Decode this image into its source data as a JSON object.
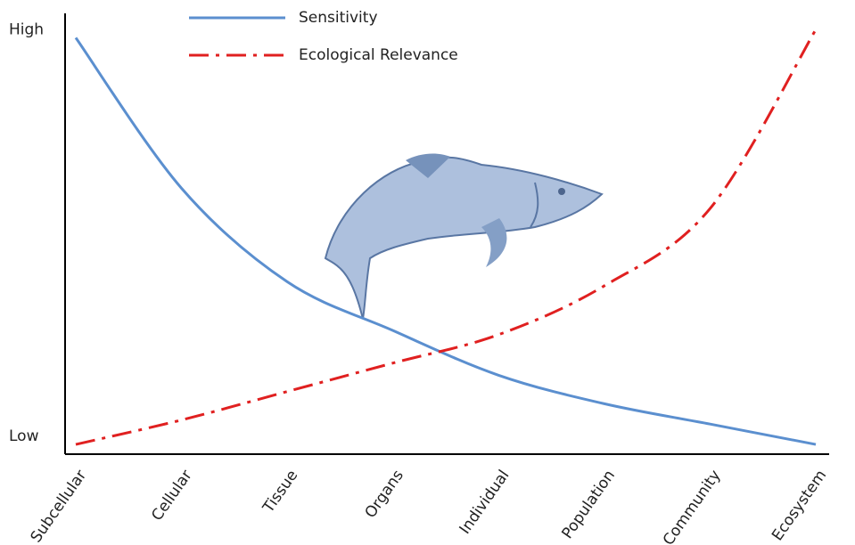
{
  "chart_data": {
    "type": "line",
    "categories": [
      "Subcellular",
      "Cellular",
      "Tissue",
      "Organs",
      "Individual",
      "Population",
      "Community",
      "Ecosystem"
    ],
    "series": [
      {
        "name": "Sensitivity",
        "color": "#5b8fcf",
        "dash": "solid",
        "values": [
          98,
          61,
          38,
          26,
          15,
          8,
          3,
          -2
        ]
      },
      {
        "name": "Ecological Relevance",
        "color": "#e02020",
        "dash": "dashdot",
        "values": [
          -2,
          4,
          11,
          18,
          25,
          37,
          56,
          100
        ]
      }
    ],
    "ylim": [
      -4.4,
      104
    ],
    "yticks": [
      {
        "value": 100,
        "label": "High"
      },
      {
        "value": 0,
        "label": "Low"
      }
    ],
    "legend": "top"
  }
}
